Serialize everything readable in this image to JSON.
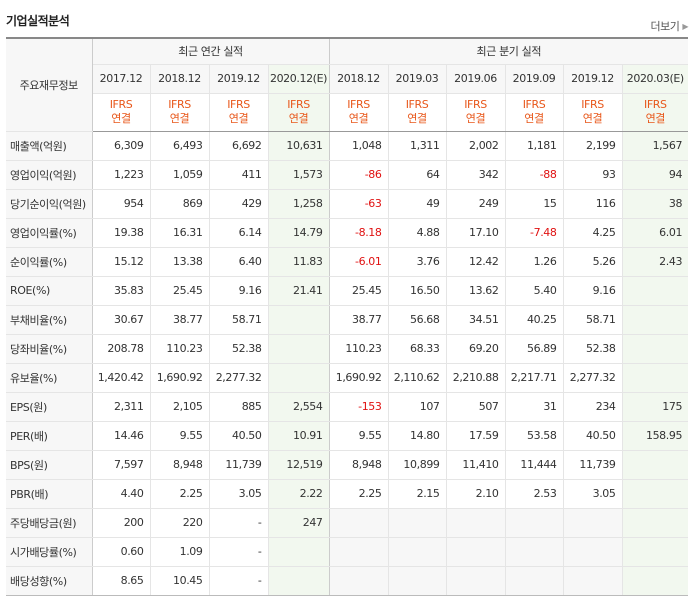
{
  "title": "기업실적분석",
  "more_label": "더보기",
  "header": {
    "row_label": "주요재무정보",
    "annual_group": "최근 연간 실적",
    "quarter_group": "최근 분기 실적",
    "periods": [
      "2017.12",
      "2018.12",
      "2019.12",
      "2020.12(E)",
      "2018.12",
      "2019.03",
      "2019.06",
      "2019.09",
      "2019.12",
      "2020.03(E)"
    ],
    "ifrs_top": "IFRS",
    "ifrs_bottom": "연결"
  },
  "rows": [
    {
      "label": "매출액(억원)",
      "values": [
        "6,309",
        "6,493",
        "6,692",
        "10,631",
        "1,048",
        "1,311",
        "2,002",
        "1,181",
        "2,199",
        "1,567"
      ]
    },
    {
      "label": "영업이익(억원)",
      "values": [
        "1,223",
        "1,059",
        "411",
        "1,573",
        "-86",
        "64",
        "342",
        "-88",
        "93",
        "94"
      ]
    },
    {
      "label": "당기순이익(억원)",
      "values": [
        "954",
        "869",
        "429",
        "1,258",
        "-63",
        "49",
        "249",
        "15",
        "116",
        "38"
      ]
    },
    {
      "label": "영업이익률(%)",
      "values": [
        "19.38",
        "16.31",
        "6.14",
        "14.79",
        "-8.18",
        "4.88",
        "17.10",
        "-7.48",
        "4.25",
        "6.01"
      ]
    },
    {
      "label": "순이익률(%)",
      "values": [
        "15.12",
        "13.38",
        "6.40",
        "11.83",
        "-6.01",
        "3.76",
        "12.42",
        "1.26",
        "5.26",
        "2.43"
      ]
    },
    {
      "label": "ROE(%)",
      "values": [
        "35.83",
        "25.45",
        "9.16",
        "21.41",
        "25.45",
        "16.50",
        "13.62",
        "5.40",
        "9.16",
        ""
      ]
    },
    {
      "label": "부채비율(%)",
      "values": [
        "30.67",
        "38.77",
        "58.71",
        "",
        "38.77",
        "56.68",
        "34.51",
        "40.25",
        "58.71",
        ""
      ]
    },
    {
      "label": "당좌비율(%)",
      "values": [
        "208.78",
        "110.23",
        "52.38",
        "",
        "110.23",
        "68.33",
        "69.20",
        "56.89",
        "52.38",
        ""
      ]
    },
    {
      "label": "유보율(%)",
      "values": [
        "1,420.42",
        "1,690.92",
        "2,277.32",
        "",
        "1,690.92",
        "2,110.62",
        "2,210.88",
        "2,217.71",
        "2,277.32",
        ""
      ]
    },
    {
      "label": "EPS(원)",
      "values": [
        "2,311",
        "2,105",
        "885",
        "2,554",
        "-153",
        "107",
        "507",
        "31",
        "234",
        "175"
      ]
    },
    {
      "label": "PER(배)",
      "values": [
        "14.46",
        "9.55",
        "40.50",
        "10.91",
        "9.55",
        "14.80",
        "17.59",
        "53.58",
        "40.50",
        "158.95"
      ]
    },
    {
      "label": "BPS(원)",
      "values": [
        "7,597",
        "8,948",
        "11,739",
        "12,519",
        "8,948",
        "10,899",
        "11,410",
        "11,444",
        "11,739",
        ""
      ]
    },
    {
      "label": "PBR(배)",
      "values": [
        "4.40",
        "2.25",
        "3.05",
        "2.22",
        "2.25",
        "2.15",
        "2.10",
        "2.53",
        "3.05",
        ""
      ]
    },
    {
      "label": "주당배당금(원)",
      "values": [
        "200",
        "220",
        "-",
        "247",
        "",
        "",
        "",
        "",
        "",
        ""
      ]
    },
    {
      "label": "시가배당률(%)",
      "values": [
        "0.60",
        "1.09",
        "-",
        "",
        "",
        "",
        "",
        "",
        "",
        ""
      ]
    },
    {
      "label": "배당성향(%)",
      "values": [
        "8.65",
        "10.45",
        "-",
        "",
        "",
        "",
        "",
        "",
        "",
        ""
      ]
    }
  ],
  "colors": {
    "negative": "#e01111",
    "ifrs": "#e8571a",
    "estimate_bg": "#f2f8ef",
    "header_bg": "#f7f7f7"
  }
}
